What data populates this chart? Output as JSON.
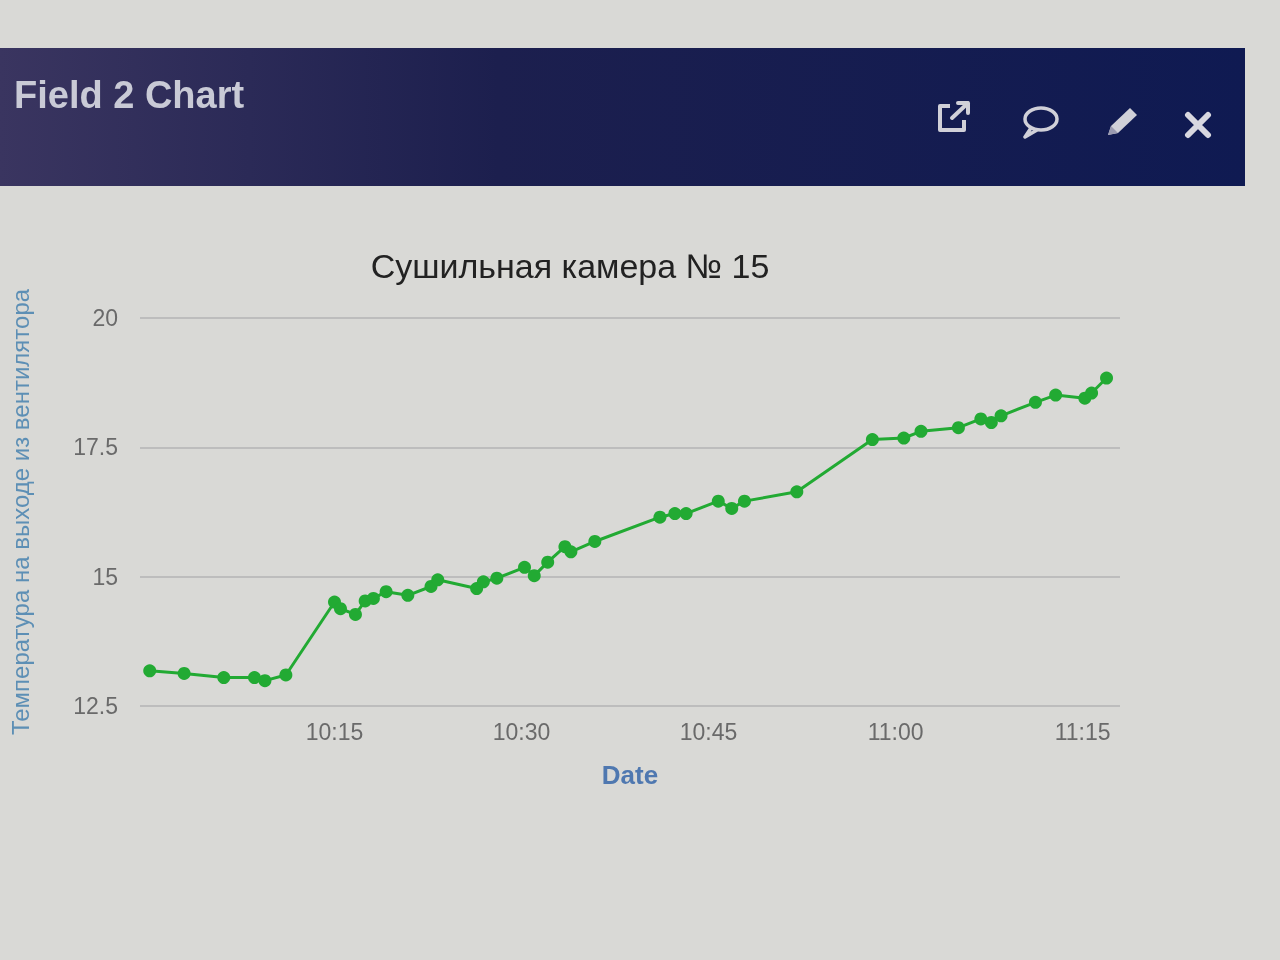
{
  "chart_data": {
    "type": "line",
    "title": "Сушильная камера № 15",
    "xlabel": "Date",
    "ylabel": "Температура на выходе из вентилятора",
    "annotations": [
      "Field 2 Chart"
    ],
    "x": [
      10.003,
      10.049,
      10.102,
      10.143,
      10.157,
      10.185,
      10.25,
      10.258,
      10.278,
      10.291,
      10.302,
      10.319,
      10.348,
      10.379,
      10.388,
      10.44,
      10.449,
      10.467,
      10.504,
      10.517,
      10.535,
      10.558,
      10.566,
      10.598,
      10.685,
      10.705,
      10.72,
      10.763,
      10.781,
      10.798,
      10.868,
      10.969,
      11.011,
      11.034,
      11.084,
      11.114,
      11.128,
      11.141,
      11.187,
      11.214,
      11.253,
      11.262,
      11.282
    ],
    "series": [
      {
        "color": "#22aa33",
        "values": [
          13.18,
          13.13,
          13.05,
          13.05,
          12.99,
          13.1,
          14.51,
          14.38,
          14.27,
          14.53,
          14.58,
          14.71,
          14.64,
          14.81,
          14.94,
          14.77,
          14.9,
          14.97,
          15.18,
          15.02,
          15.28,
          15.58,
          15.48,
          15.68,
          16.15,
          16.22,
          16.22,
          16.46,
          16.32,
          16.46,
          16.64,
          17.65,
          17.68,
          17.81,
          17.88,
          18.05,
          17.98,
          18.11,
          18.37,
          18.51,
          18.45,
          18.55,
          18.84
        ]
      }
    ],
    "xlim": [
      9.99,
      11.3
    ],
    "xticks": [
      {
        "value": 10.25,
        "label": "10:15"
      },
      {
        "value": 10.5,
        "label": "10:30"
      },
      {
        "value": 10.75,
        "label": "10:45"
      },
      {
        "value": 11,
        "label": "11:00"
      },
      {
        "value": 11.25,
        "label": "11:15"
      }
    ],
    "ylim": [
      12.5,
      20
    ],
    "yticks": [
      12.5,
      15,
      17.5,
      20
    ],
    "grid": "y",
    "marker": "circle",
    "line_style": "solid"
  }
}
